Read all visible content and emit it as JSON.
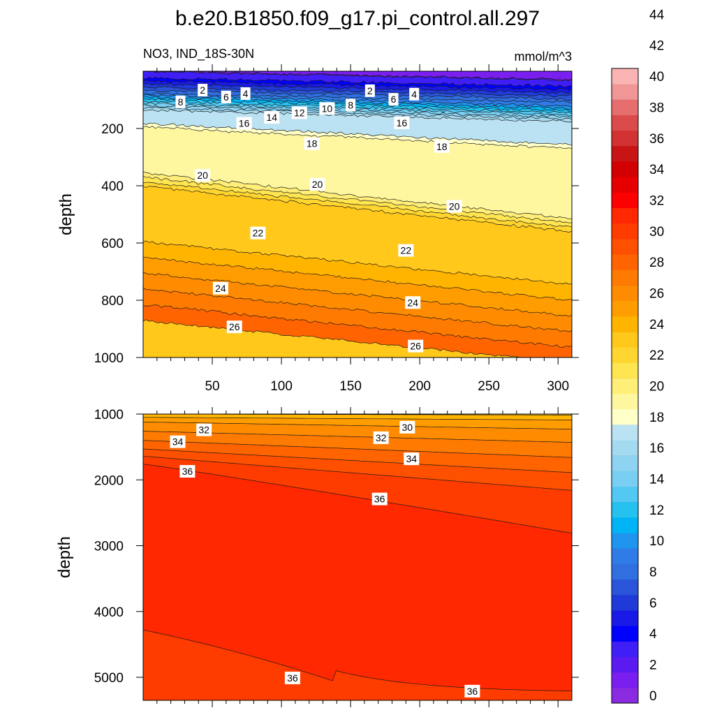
{
  "chart_data": {
    "type": "contour",
    "title": "b.e20.B1850.f09_g17.pi_control.all.297",
    "left_string": "NO3, IND_18S-30N",
    "units": "mmol/m^3",
    "colorbar": {
      "levels": [
        0,
        2,
        4,
        6,
        8,
        10,
        12,
        14,
        16,
        18,
        20,
        22,
        24,
        26,
        28,
        30,
        32,
        34,
        36,
        38,
        40,
        42,
        44
      ],
      "colors": [
        "#8a2be2",
        "#7b1ff0",
        "#5a1af0",
        "#3f1ff5",
        "#0000ff",
        "#1a1ae6",
        "#1f3ad8",
        "#2a55da",
        "#2f6fe0",
        "#2f7ce8",
        "#1f95f0",
        "#00b4f5",
        "#25c2f0",
        "#52c8f3",
        "#78cff2",
        "#8ed4f2",
        "#a4daf0",
        "#bbe2f2",
        "#ffffc8",
        "#fff7a0",
        "#ffee78",
        "#ffe550",
        "#ffd530",
        "#ffc81a",
        "#ffb400",
        "#ff9c00",
        "#ff8c00",
        "#ff7a00",
        "#ff6400",
        "#ff5000",
        "#ff3c00",
        "#ff2800",
        "#ff0000",
        "#e60000",
        "#d20000",
        "#c81414",
        "#d23232",
        "#dc4b4b",
        "#e66e6e",
        "#f09696",
        "#fab4b4"
      ],
      "tick_labels": [
        "0",
        "2",
        "4",
        "6",
        "8",
        "10",
        "12",
        "14",
        "16",
        "18",
        "20",
        "22",
        "24",
        "26",
        "28",
        "30",
        "32",
        "34",
        "36",
        "38",
        "40",
        "42",
        "44"
      ]
    },
    "panels": [
      {
        "name": "upper",
        "ylabel": "depth",
        "x_range": [
          0,
          310
        ],
        "y_range": [
          1000,
          0
        ],
        "x_ticks": [
          50,
          100,
          150,
          200,
          250,
          300
        ],
        "y_ticks": [
          200,
          400,
          600,
          800,
          1000
        ],
        "contour_labels": [
          {
            "x": 27,
            "y": 107,
            "v": "8"
          },
          {
            "x": 43,
            "y": 66,
            "v": "2"
          },
          {
            "x": 60,
            "y": 90,
            "v": "6"
          },
          {
            "x": 74,
            "y": 78,
            "v": "4"
          },
          {
            "x": 73,
            "y": 182,
            "v": "16"
          },
          {
            "x": 93,
            "y": 161,
            "v": "14"
          },
          {
            "x": 113,
            "y": 145,
            "v": "12"
          },
          {
            "x": 133,
            "y": 130,
            "v": "10"
          },
          {
            "x": 150,
            "y": 118,
            "v": "8"
          },
          {
            "x": 164,
            "y": 68,
            "v": "2"
          },
          {
            "x": 181,
            "y": 98,
            "v": "6"
          },
          {
            "x": 196,
            "y": 80,
            "v": "4"
          },
          {
            "x": 187,
            "y": 180,
            "v": "16"
          },
          {
            "x": 122,
            "y": 253,
            "v": "18"
          },
          {
            "x": 216,
            "y": 263,
            "v": "18"
          },
          {
            "x": 43,
            "y": 364,
            "v": "20"
          },
          {
            "x": 126,
            "y": 395,
            "v": "20"
          },
          {
            "x": 225,
            "y": 472,
            "v": "20"
          },
          {
            "x": 83,
            "y": 565,
            "v": "22"
          },
          {
            "x": 190,
            "y": 626,
            "v": "22"
          },
          {
            "x": 56,
            "y": 758,
            "v": "24"
          },
          {
            "x": 195,
            "y": 808,
            "v": "24"
          },
          {
            "x": 66,
            "y": 893,
            "v": "26"
          },
          {
            "x": 197,
            "y": 960,
            "v": "26"
          }
        ]
      },
      {
        "name": "lower",
        "ylabel": "depth",
        "x_range": [
          0,
          310
        ],
        "y_range": [
          5350,
          1000
        ],
        "y_ticks": [
          1000,
          2000,
          3000,
          4000,
          5000
        ],
        "contour_labels": [
          {
            "x": 44,
            "y": 1240,
            "v": "32"
          },
          {
            "x": 25,
            "y": 1420,
            "v": "34"
          },
          {
            "x": 32,
            "y": 1870,
            "v": "36"
          },
          {
            "x": 172,
            "y": 1360,
            "v": "32"
          },
          {
            "x": 191,
            "y": 1200,
            "v": "30"
          },
          {
            "x": 194,
            "y": 1680,
            "v": "34"
          },
          {
            "x": 171,
            "y": 2290,
            "v": "36"
          },
          {
            "x": 108,
            "y": 5010,
            "v": "36"
          },
          {
            "x": 238,
            "y": 5210,
            "v": "36"
          }
        ]
      }
    ]
  }
}
